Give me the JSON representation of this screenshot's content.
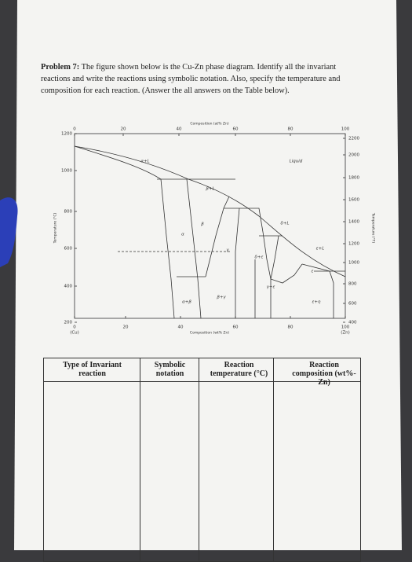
{
  "problem": {
    "label": "Problem 7:",
    "text": "The figure shown below is the Cu-Zn phase diagram. Identify all the invariant reactions and write the reactions using symbolic notation. Also, specify the temperature and composition for each reaction. (Answer the all answers on the Table below)."
  },
  "diagram": {
    "top_title": "Composition (at% Zn)",
    "top_ticks": [
      "0",
      "20",
      "40",
      "60",
      "80",
      "100"
    ],
    "left_ticks": [
      "1200",
      "1000",
      "800",
      "600",
      "400",
      "200"
    ],
    "right_ticks": [
      "2200",
      "2000",
      "1800",
      "1600",
      "1400",
      "1200",
      "1000",
      "800",
      "600",
      "400"
    ],
    "bottom_ticks": [
      "0",
      "20",
      "40",
      "60",
      "80",
      "100"
    ],
    "bottom_left_label": "(Cu)",
    "bottom_right_label": "(Zn)",
    "bottom_title": "Composition (wt% Zn)",
    "left_title": "Temperature (°C)",
    "right_title": "Temperature (°F)",
    "phases": [
      "α+L",
      "Liquid",
      "β+L",
      "α",
      "β",
      "γ",
      "δ+L",
      "ε+L",
      "δ+ε",
      "γ+ε",
      "ε",
      "ε+η",
      "β+γ",
      "α+β"
    ]
  },
  "table": {
    "headers": [
      "Type of Invariant reaction",
      "Symbolic notation",
      "Reaction temperature (°C)",
      "Reaction composition (wt%-Zn)"
    ]
  }
}
